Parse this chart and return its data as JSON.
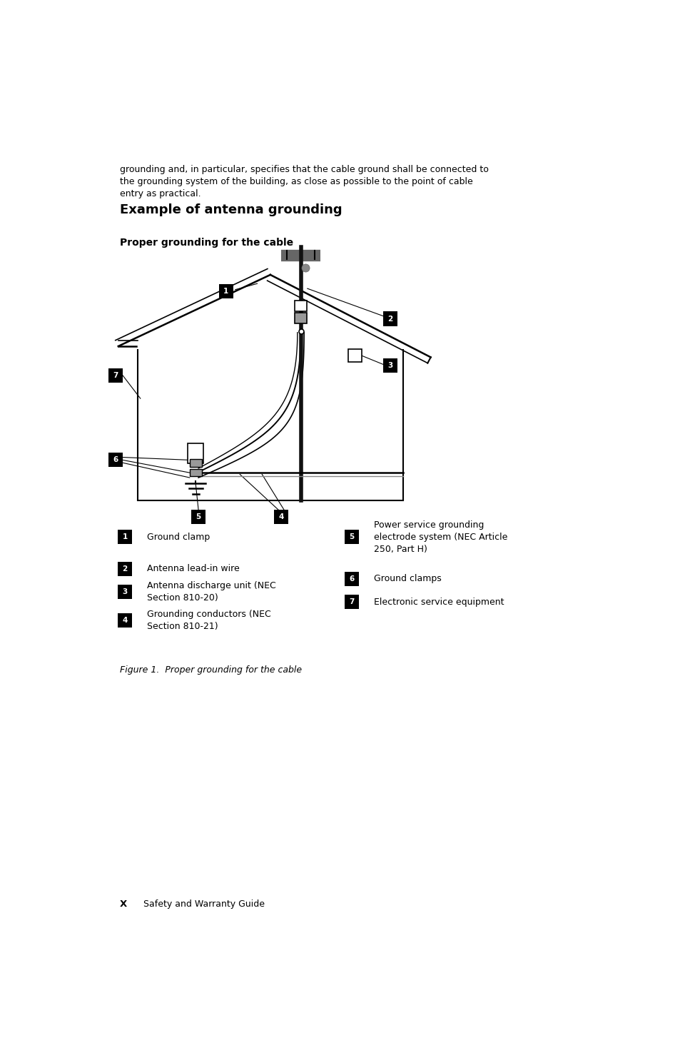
{
  "bg_color": "#ffffff",
  "page_width": 9.54,
  "page_height": 14.75,
  "top_text_line1": "grounding and, in particular, specifies that the cable ground shall be connected to",
  "top_text_line2": "the grounding system of the building, as close as possible to the point of cable",
  "top_text_line3": "entry as practical.",
  "section_title": "Example of antenna grounding",
  "diagram_subtitle": "Proper grounding for the cable",
  "legend_items_left": [
    {
      "num": "1",
      "text": "Ground clamp"
    },
    {
      "num": "2",
      "text": "Antenna lead-in wire"
    },
    {
      "num": "3",
      "text": "Antenna discharge unit (NEC\nSection 810-20)"
    },
    {
      "num": "4",
      "text": "Grounding conductors (NEC\nSection 810-21)"
    }
  ],
  "legend_items_right": [
    {
      "num": "5",
      "text": "Power service grounding\nelectrode system (NEC Article\n250, Part H)"
    },
    {
      "num": "6",
      "text": "Ground clamps"
    },
    {
      "num": "7",
      "text": "Electronic service equipment"
    }
  ],
  "figure_caption": "Figure 1.  Proper grounding for the cable",
  "footer_bold": "X",
  "footer_text": "Safety and Warranty Guide"
}
